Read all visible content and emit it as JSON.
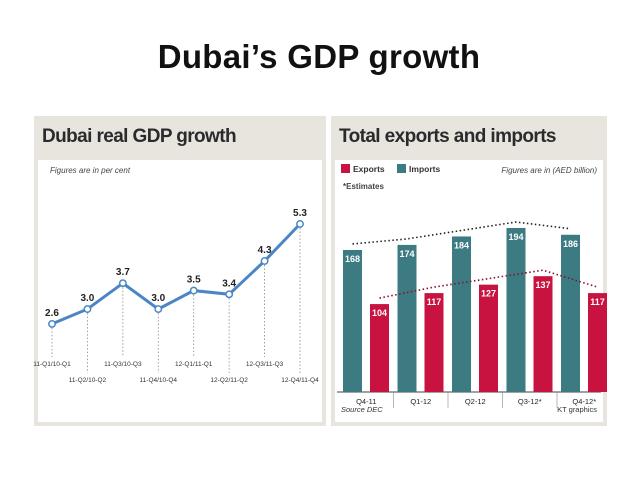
{
  "slide_title": "Dubai’s GDP growth",
  "chart_data": [
    {
      "type": "line",
      "title": "Dubai real GDP growth",
      "note": "Figures are in per cent",
      "categories": [
        "11-Q1/10-Q1",
        "11-Q2/10-Q2",
        "11-Q3/10-Q3",
        "11-Q4/10-Q4",
        "12-Q1/11-Q1",
        "12-Q2/11-Q2",
        "12-Q3/11-Q3",
        "12-Q4/11-Q4"
      ],
      "values": [
        2.6,
        3.0,
        3.7,
        3.0,
        3.5,
        3.4,
        4.3,
        5.3
      ],
      "value_labels": [
        "2.6",
        "3.0",
        "3.7",
        "3.0",
        "3.5",
        "3.4",
        "4.3",
        "5.3"
      ],
      "colors": {
        "line": "#4a86c5",
        "markers": "#ffffff"
      }
    },
    {
      "type": "bar",
      "title": "Total exports and imports",
      "note": "Figures are in (AED billion)",
      "estimates_note": "*Estimates",
      "categories": [
        "Q4-11",
        "Q1-12",
        "Q2-12",
        "Q3-12*",
        "Q4-12*"
      ],
      "series": [
        {
          "name": "Exports",
          "values": [
            104,
            117,
            127,
            137,
            117
          ],
          "color": "#c8123f"
        },
        {
          "name": "Imports",
          "values": [
            168,
            174,
            184,
            194,
            186
          ],
          "color": "#3d7b82"
        }
      ],
      "source": "Source DEC",
      "credit": "KT graphics"
    }
  ]
}
